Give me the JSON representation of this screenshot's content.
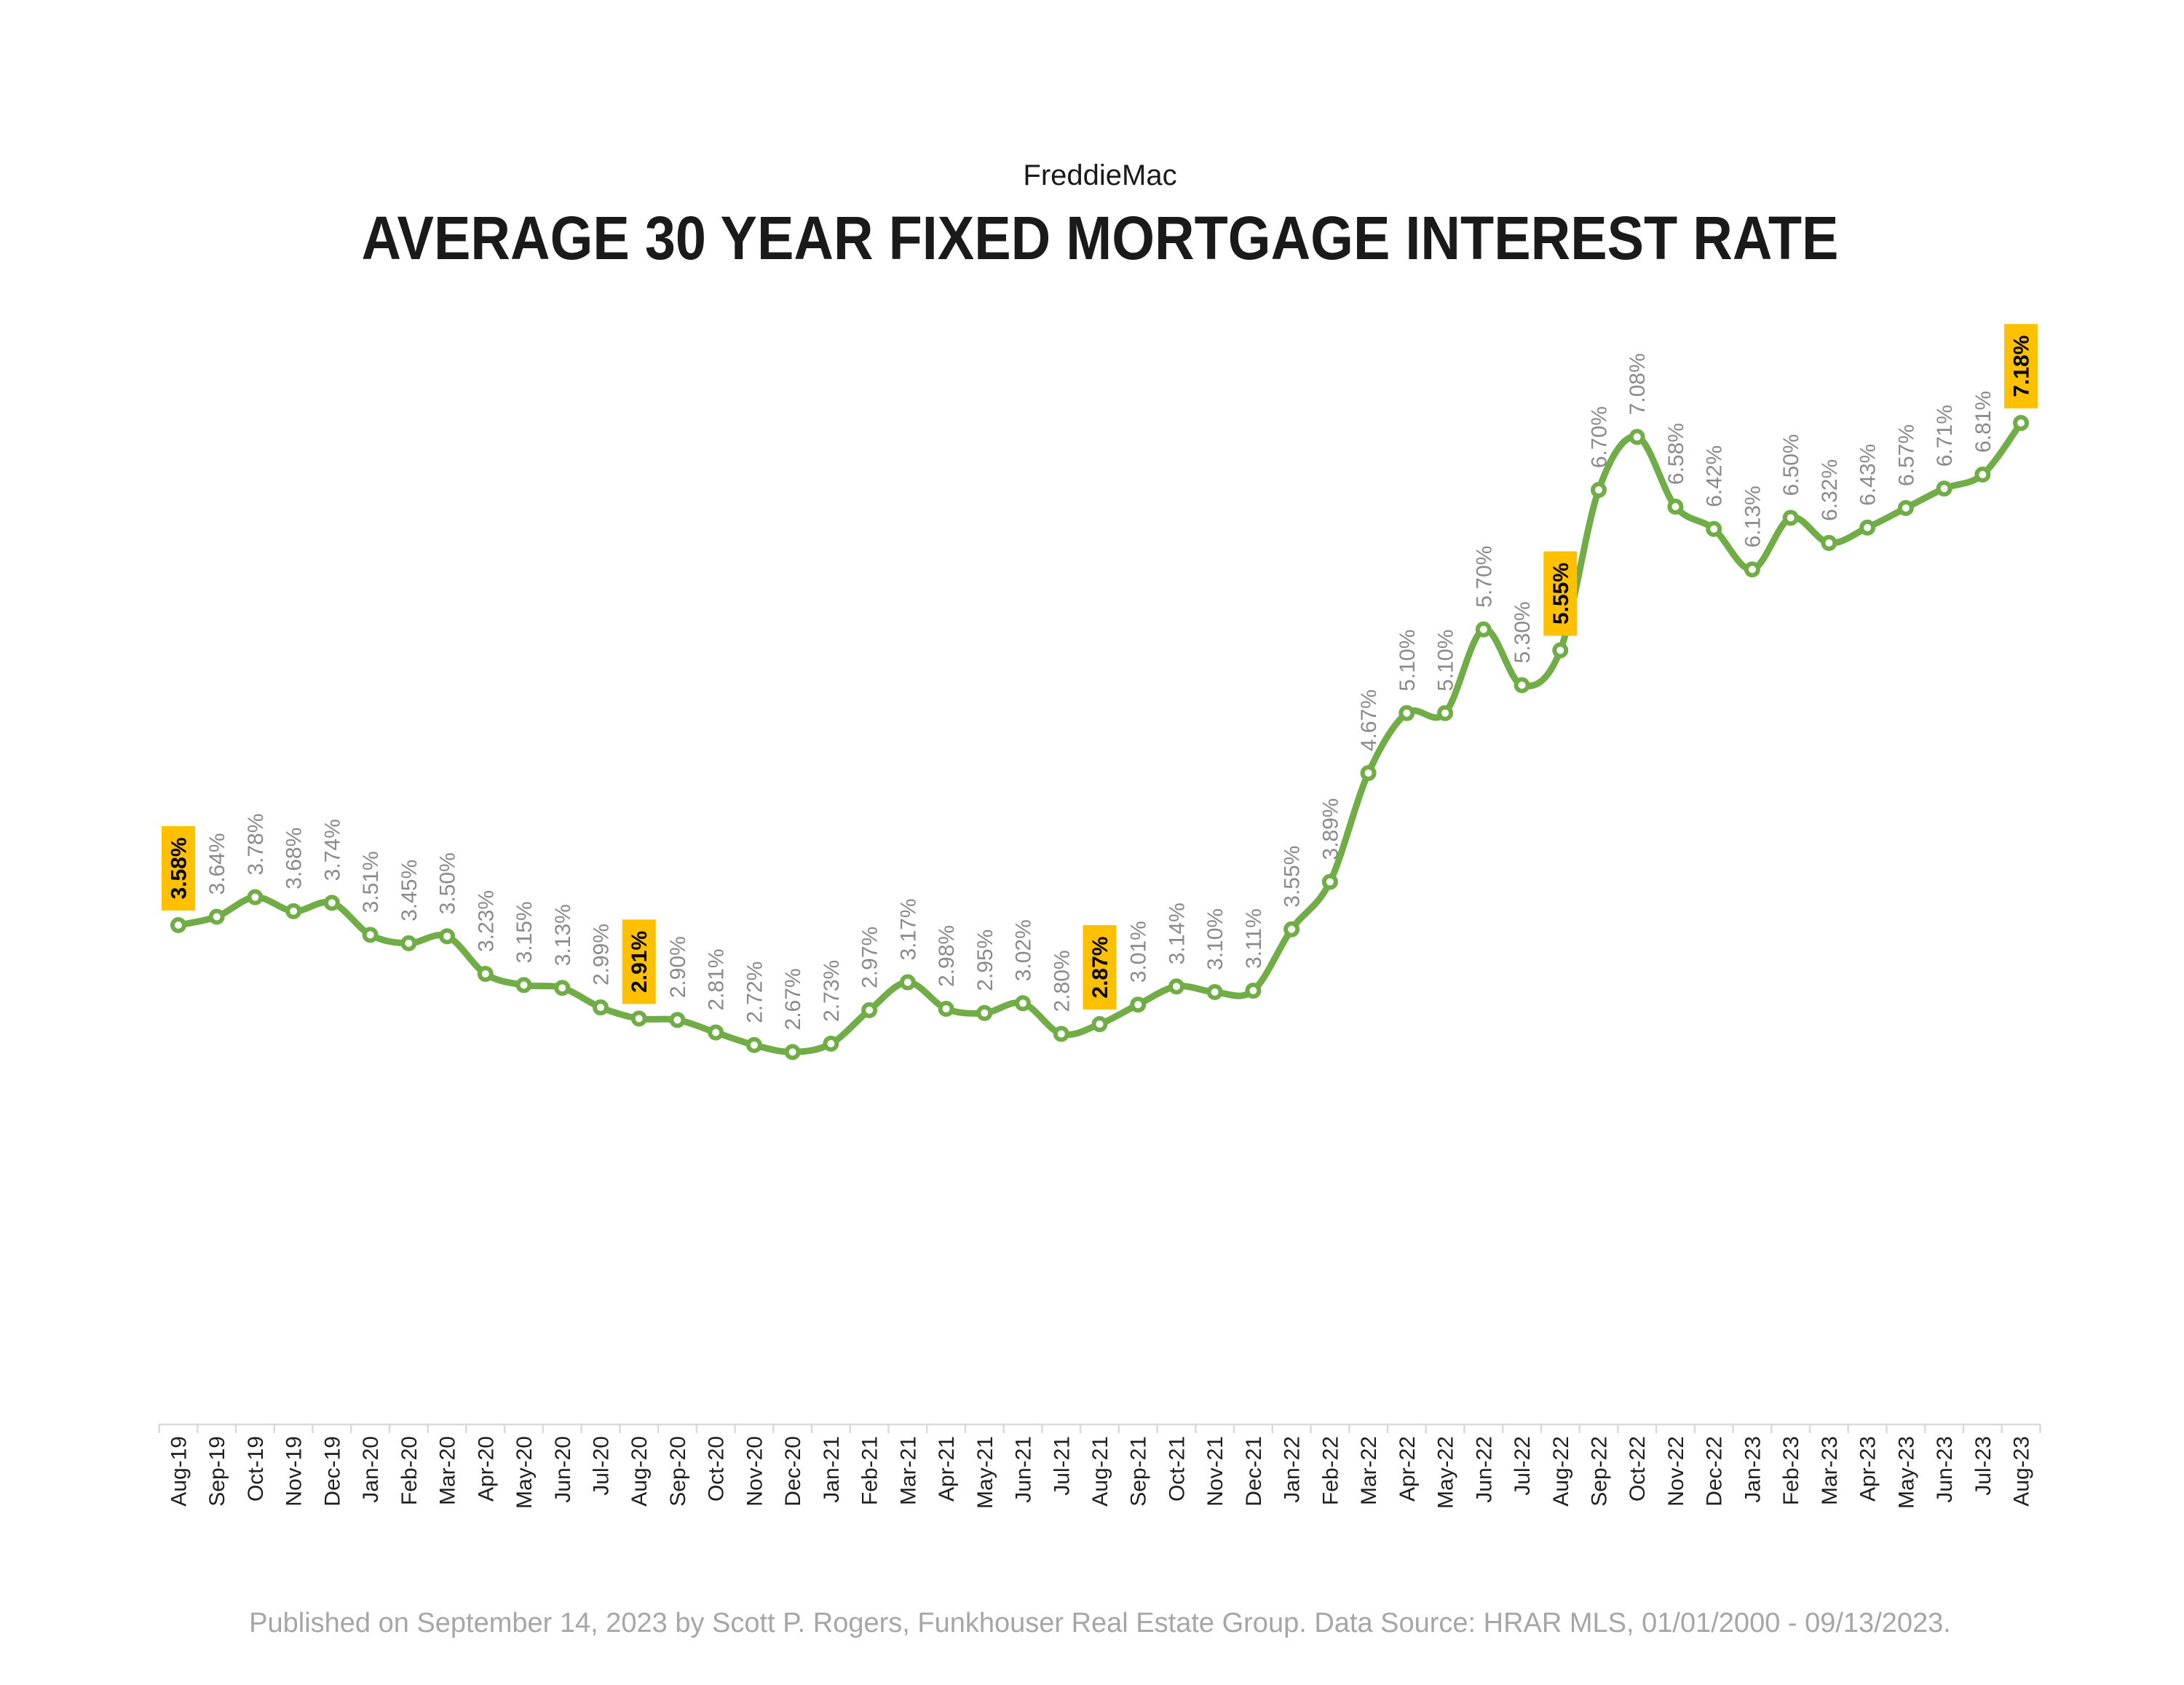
{
  "header": {
    "source": "FreddieMac"
  },
  "chart_data": {
    "type": "line",
    "title": "AVERAGE 30 YEAR FIXED MORTGAGE INTEREST RATE",
    "categories": [
      "Aug-19",
      "Sep-19",
      "Oct-19",
      "Nov-19",
      "Dec-19",
      "Jan-20",
      "Feb-20",
      "Mar-20",
      "Apr-20",
      "May-20",
      "Jun-20",
      "Jul-20",
      "Aug-20",
      "Sep-20",
      "Oct-20",
      "Nov-20",
      "Dec-20",
      "Jan-21",
      "Feb-21",
      "Mar-21",
      "Apr-21",
      "May-21",
      "Jun-21",
      "Jul-21",
      "Aug-21",
      "Sep-21",
      "Oct-21",
      "Nov-21",
      "Dec-21",
      "Jan-22",
      "Feb-22",
      "Mar-22",
      "Apr-22",
      "May-22",
      "Jun-22",
      "Jul-22",
      "Aug-22",
      "Sep-22",
      "Oct-22",
      "Nov-22",
      "Dec-22",
      "Jan-23",
      "Feb-23",
      "Mar-23",
      "Apr-23",
      "May-23",
      "Jun-23",
      "Jul-23",
      "Aug-23"
    ],
    "values": [
      3.58,
      3.64,
      3.78,
      3.68,
      3.74,
      3.51,
      3.45,
      3.5,
      3.23,
      3.15,
      3.13,
      2.99,
      2.91,
      2.9,
      2.81,
      2.72,
      2.67,
      2.73,
      2.97,
      3.17,
      2.98,
      2.95,
      3.02,
      2.8,
      2.87,
      3.01,
      3.14,
      3.1,
      3.11,
      3.55,
      3.89,
      4.67,
      5.1,
      5.1,
      5.7,
      5.3,
      5.55,
      6.7,
      7.08,
      6.58,
      6.42,
      6.13,
      6.5,
      6.32,
      6.43,
      6.57,
      6.71,
      6.81,
      7.18
    ],
    "unit": "%",
    "highlighted": [
      "Aug-19",
      "Aug-20",
      "Aug-21",
      "Aug-22",
      "Aug-23"
    ],
    "ylim": [
      0,
      8
    ],
    "grid": false,
    "colors": {
      "line": "#70AD47",
      "highlight": "#FFC000"
    }
  },
  "footer": {
    "note": "Published on September 14, 2023 by Scott P. Rogers, Funkhouser Real Estate Group. Data Source: HRAR MLS, 01/01/2000 - 09/13/2023."
  }
}
